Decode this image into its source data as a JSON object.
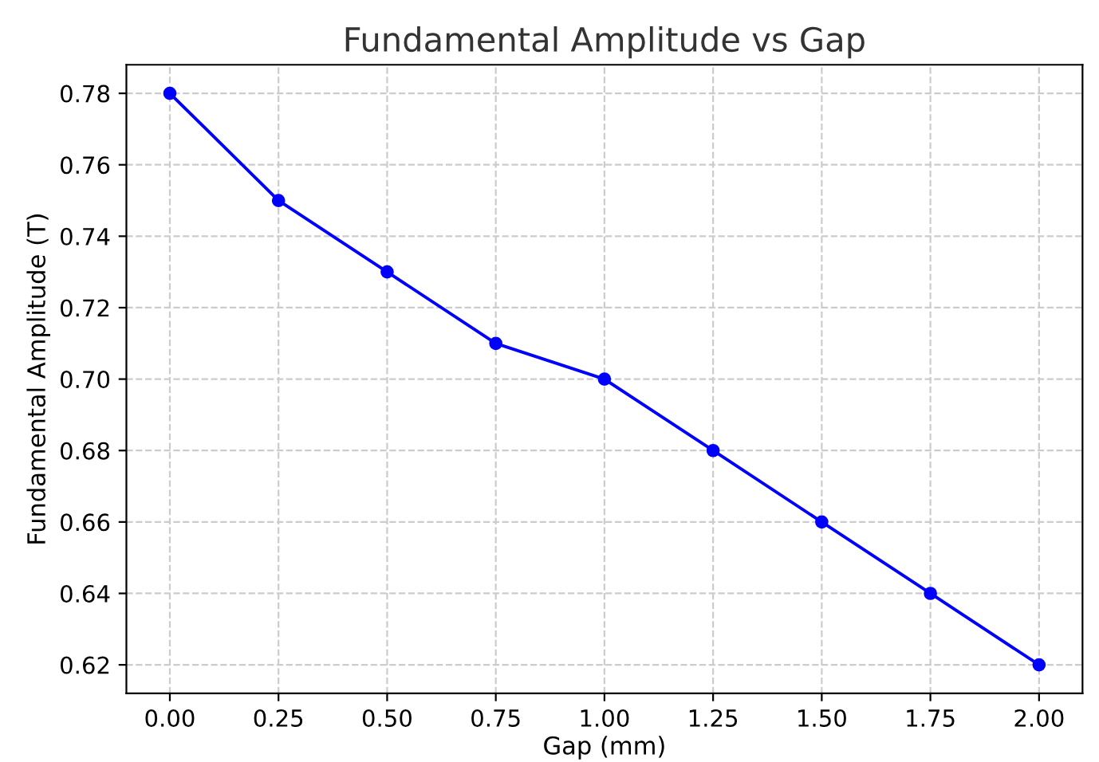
{
  "chart_data": {
    "type": "line",
    "title": "Fundamental Amplitude vs Gap",
    "xlabel": "Gap (mm)",
    "ylabel": "Fundamental Amplitude (T)",
    "x": [
      0,
      0.25,
      0.5,
      0.75,
      1.0,
      1.25,
      1.5,
      1.75,
      2.0
    ],
    "series": [
      {
        "color": "#0000ff",
        "values": [
          0.78,
          0.75,
          0.73,
          0.71,
          0.7,
          0.68,
          0.66,
          0.64,
          0.62
        ]
      }
    ],
    "marker": "circle",
    "line_style": "solid",
    "grid": true,
    "xlim": [
      -0.1,
      2.1
    ],
    "ylim": [
      0.612,
      0.788
    ],
    "xticks": [
      {
        "value": 0,
        "label": "0.00"
      },
      {
        "value": 0.25,
        "label": "0.25"
      },
      {
        "value": 0.5,
        "label": "0.50"
      },
      {
        "value": 0.75,
        "label": "0.75"
      },
      {
        "value": 1.0,
        "label": "1.00"
      },
      {
        "value": 1.25,
        "label": "1.25"
      },
      {
        "value": 1.5,
        "label": "1.50"
      },
      {
        "value": 1.75,
        "label": "1.75"
      },
      {
        "value": 2.0,
        "label": "2.00"
      }
    ],
    "yticks": [
      {
        "value": 0.62,
        "label": "0.62"
      },
      {
        "value": 0.64,
        "label": "0.64"
      },
      {
        "value": 0.66,
        "label": "0.66"
      },
      {
        "value": 0.68,
        "label": "0.68"
      },
      {
        "value": 0.7,
        "label": "0.70"
      },
      {
        "value": 0.72,
        "label": "0.72"
      },
      {
        "value": 0.74,
        "label": "0.74"
      },
      {
        "value": 0.76,
        "label": "0.76"
      },
      {
        "value": 0.78,
        "label": "0.78"
      }
    ]
  }
}
